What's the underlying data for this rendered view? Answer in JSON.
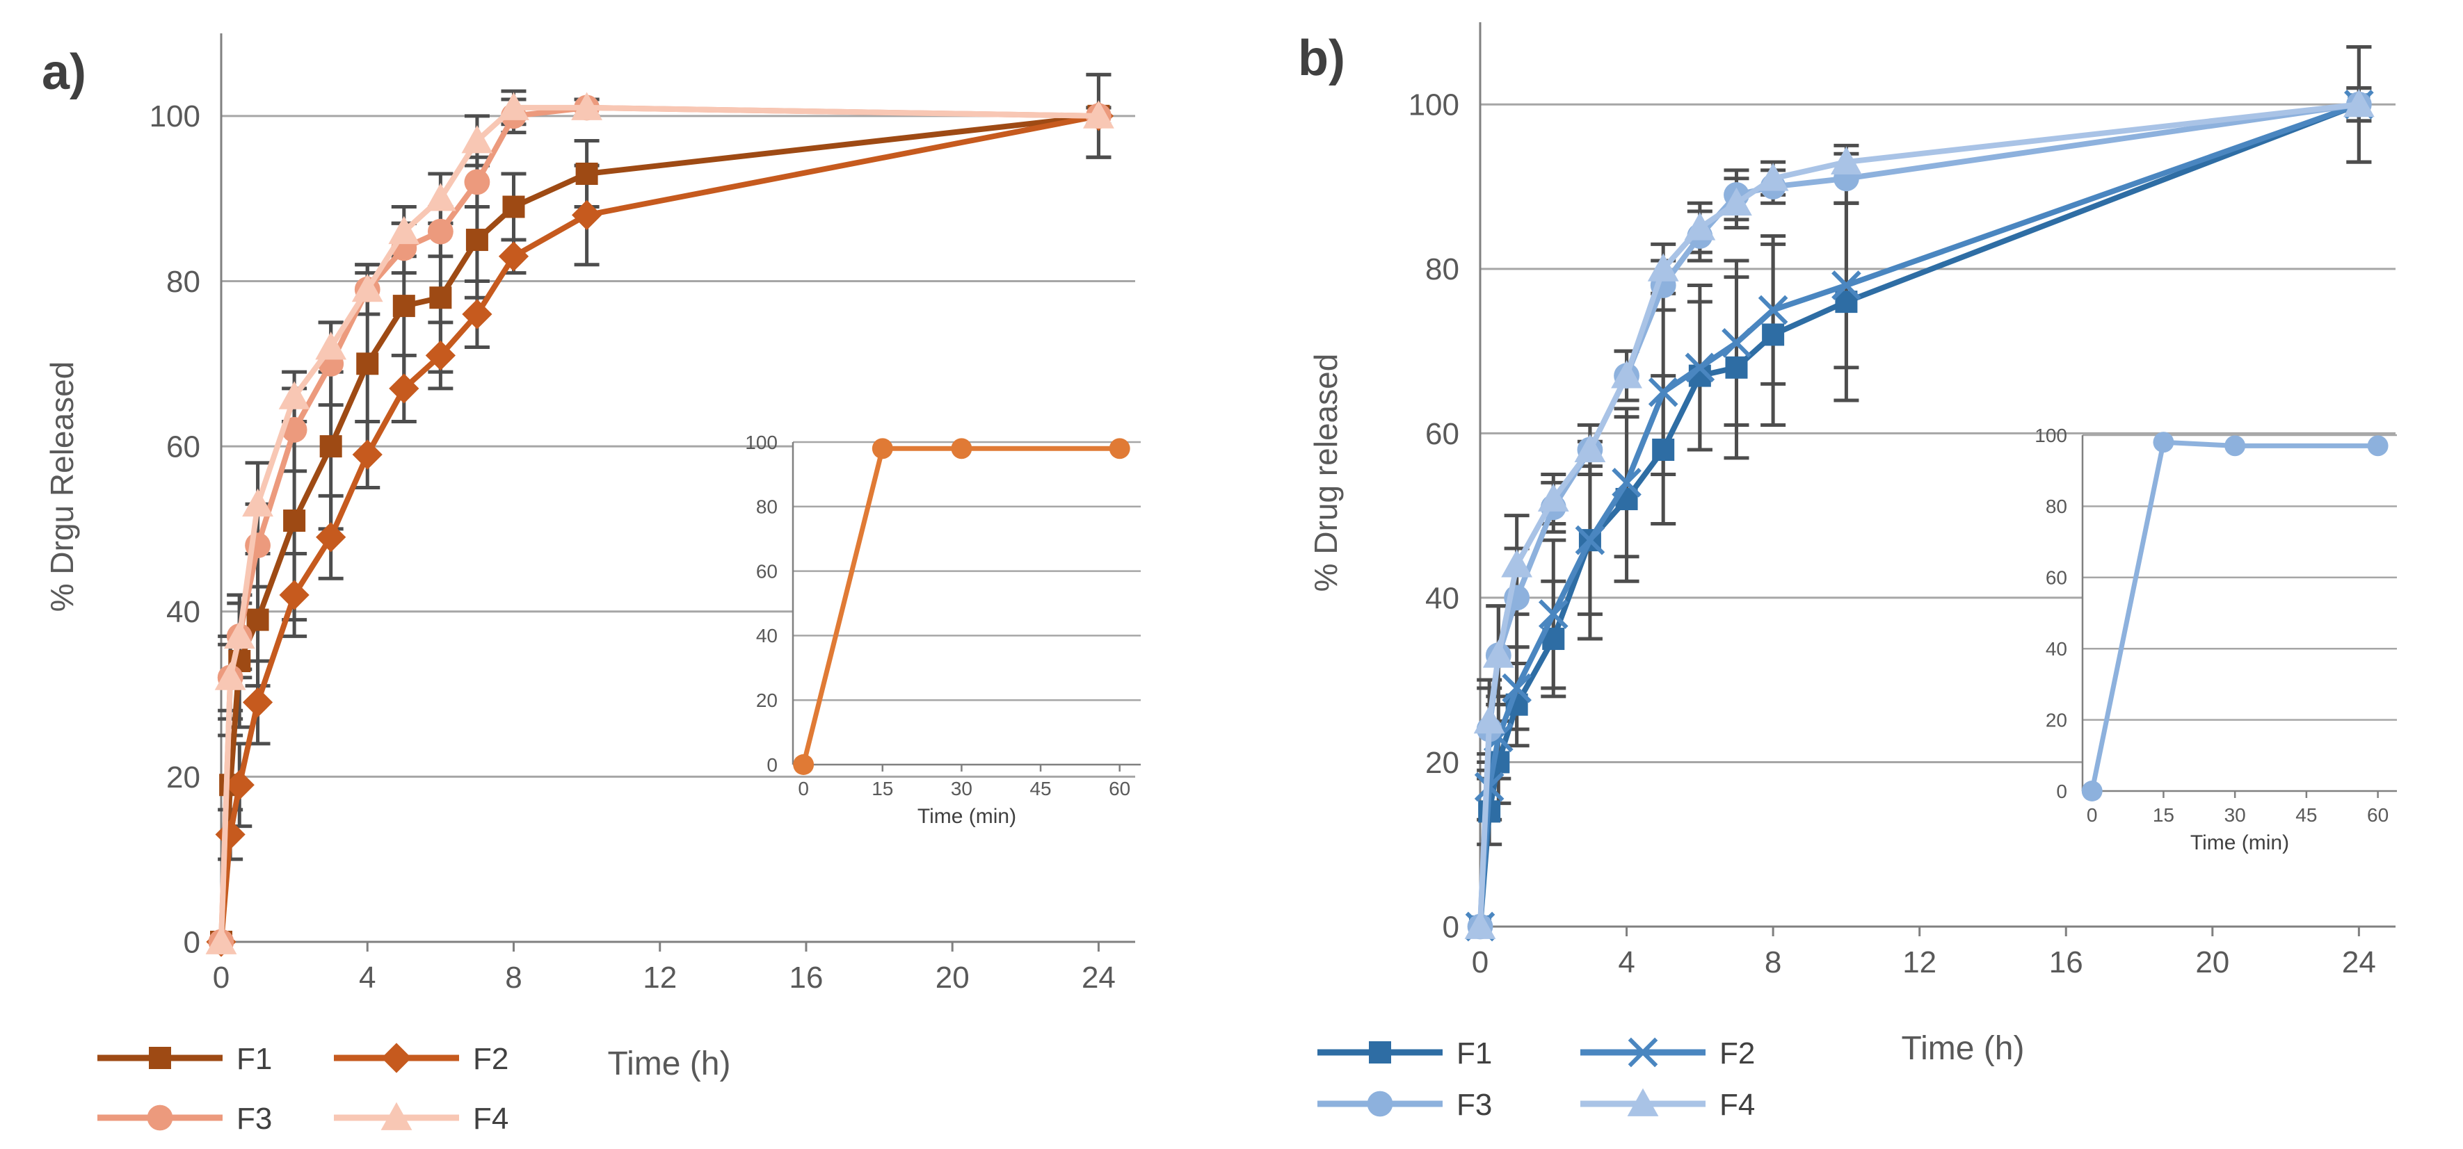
{
  "chart_data": [
    {
      "type": "line",
      "panel_label": "a)",
      "xlabel": "Time (h)",
      "ylabel": "% Drgu Released",
      "xlim": [
        0,
        25
      ],
      "ylim": [
        0,
        110
      ],
      "xticks": [
        0,
        4,
        8,
        12,
        16,
        20,
        24
      ],
      "yticks": [
        0,
        20,
        40,
        60,
        80,
        100
      ],
      "grid": "horizontal",
      "legend_position": "bottom-left",
      "series": [
        {
          "name": "F1",
          "color": "#9e4a14",
          "marker": "square",
          "x": [
            0,
            0.25,
            0.5,
            1,
            2,
            3,
            4,
            5,
            6,
            7,
            8,
            10,
            24
          ],
          "values": [
            0,
            19,
            34,
            39,
            51,
            60,
            70,
            77,
            78,
            85,
            89,
            93,
            100
          ],
          "errors": [
            0,
            6,
            8,
            8,
            12,
            10,
            11,
            10,
            9,
            7,
            4,
            4,
            5
          ]
        },
        {
          "name": "F2",
          "color": "#c65a1e",
          "marker": "diamond",
          "x": [
            0,
            0.25,
            0.5,
            1,
            2,
            3,
            4,
            5,
            6,
            7,
            8,
            10,
            24
          ],
          "values": [
            0,
            13,
            19,
            29,
            42,
            49,
            59,
            67,
            71,
            76,
            83,
            88,
            100
          ],
          "errors": [
            0,
            3,
            5,
            5,
            5,
            5,
            4,
            4,
            4,
            4,
            2,
            6,
            5
          ]
        },
        {
          "name": "F3",
          "color": "#ec9a7d",
          "marker": "circle",
          "x": [
            0,
            0.25,
            0.5,
            1,
            2,
            3,
            4,
            5,
            6,
            7,
            8,
            10,
            24
          ],
          "values": [
            0,
            32,
            37,
            48,
            62,
            70,
            79,
            84,
            86,
            92,
            100,
            101,
            100
          ],
          "errors": [
            0,
            5,
            5,
            5,
            5,
            5,
            3,
            3,
            3,
            3,
            2,
            1,
            1
          ]
        },
        {
          "name": "F4",
          "color": "#f8c7b4",
          "marker": "triangle",
          "x": [
            0,
            0.25,
            0.5,
            1,
            2,
            3,
            4,
            5,
            6,
            7,
            8,
            10,
            24
          ],
          "values": [
            0,
            32,
            37,
            53,
            66,
            72,
            79,
            86,
            90,
            97,
            101,
            101,
            100
          ],
          "errors": [
            0,
            4,
            4,
            5,
            3,
            3,
            3,
            3,
            3,
            3,
            2,
            1,
            1
          ]
        }
      ],
      "inset": {
        "xlabel": "Time (min)",
        "xlim": [
          -2,
          64
        ],
        "ylim": [
          0,
          100
        ],
        "xticks": [
          0,
          15,
          30,
          45,
          60
        ],
        "yticks": [
          0,
          20,
          40,
          60,
          80,
          100
        ],
        "series": [
          {
            "name": "inset",
            "color": "#e07a35",
            "marker": "circle",
            "x": [
              0,
              15,
              30,
              60
            ],
            "values": [
              0,
              98,
              98,
              98
            ]
          }
        ]
      }
    },
    {
      "type": "line",
      "panel_label": "b)",
      "xlabel": "Time (h)",
      "ylabel": "% Drug released",
      "xlim": [
        0,
        25
      ],
      "ylim": [
        0,
        110
      ],
      "xticks": [
        0,
        4,
        8,
        12,
        16,
        20,
        24
      ],
      "yticks": [
        0,
        20,
        40,
        60,
        80,
        100
      ],
      "grid": "horizontal",
      "legend_position": "bottom-left",
      "series": [
        {
          "name": "F1",
          "color": "#2e6da4",
          "marker": "square",
          "x": [
            0,
            0.25,
            0.5,
            1,
            2,
            3,
            4,
            5,
            6,
            7,
            8,
            10,
            24
          ],
          "values": [
            0,
            14,
            20,
            27,
            35,
            47,
            52,
            58,
            67,
            68,
            72,
            76,
            100
          ],
          "errors": [
            0,
            4,
            5,
            5,
            7,
            12,
            10,
            9,
            9,
            11,
            11,
            12,
            7
          ]
        },
        {
          "name": "F2",
          "color": "#4a86c0",
          "marker": "x",
          "x": [
            0,
            0.25,
            0.5,
            1,
            2,
            3,
            4,
            5,
            6,
            7,
            8,
            10,
            24
          ],
          "values": [
            0,
            17,
            23,
            29,
            38,
            47,
            54,
            65,
            68,
            71,
            75,
            78,
            100
          ],
          "errors": [
            0,
            4,
            5,
            5,
            9,
            9,
            9,
            10,
            10,
            10,
            9,
            10,
            7
          ]
        },
        {
          "name": "F3",
          "color": "#8db1dd",
          "marker": "circle",
          "x": [
            0,
            0.25,
            0.5,
            1,
            2,
            3,
            4,
            5,
            6,
            7,
            8,
            10,
            24
          ],
          "values": [
            0,
            24,
            33,
            40,
            51,
            58,
            67,
            78,
            84,
            89,
            90,
            91,
            100
          ],
          "errors": [
            0,
            5,
            6,
            6,
            3,
            3,
            3,
            3,
            3,
            3,
            2,
            3,
            2
          ]
        },
        {
          "name": "F4",
          "color": "#a9c3e6",
          "marker": "triangle",
          "x": [
            0,
            0.25,
            0.5,
            1,
            2,
            3,
            4,
            5,
            6,
            7,
            8,
            10,
            24
          ],
          "values": [
            0,
            25,
            33,
            44,
            52,
            58,
            67,
            80,
            85,
            88,
            91,
            93,
            100
          ],
          "errors": [
            0,
            5,
            6,
            6,
            3,
            3,
            3,
            3,
            3,
            3,
            2,
            2,
            2
          ]
        }
      ],
      "inset": {
        "xlabel": "Time (min)",
        "xlim": [
          -2,
          64
        ],
        "ylim": [
          0,
          100
        ],
        "xticks": [
          0,
          15,
          30,
          45,
          60
        ],
        "yticks": [
          0,
          20,
          40,
          60,
          80,
          100
        ],
        "series": [
          {
            "name": "inset",
            "color": "#8db1dd",
            "marker": "circle",
            "x": [
              0,
              15,
              30,
              60
            ],
            "values": [
              0,
              98,
              97,
              97
            ]
          }
        ]
      }
    }
  ]
}
